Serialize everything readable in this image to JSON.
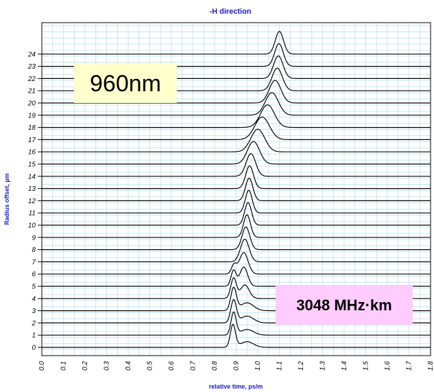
{
  "chart_data": {
    "type": "line",
    "title": "-H direction",
    "xlabel": "relative time, ps/m",
    "ylabel": "Radius offset, µm",
    "xlim": [
      0.0,
      1.8
    ],
    "x_ticks": [
      "0.0",
      "0.1",
      "0.2",
      "0.3",
      "0.4",
      "0.5",
      "0.6",
      "0.7",
      "0.8",
      "0.9",
      "1.0",
      "1.1",
      "1.2",
      "1.3",
      "1.4",
      "1.5",
      "1.6",
      "1.7",
      "1.8"
    ],
    "y_ticks": [
      "0",
      "1",
      "2",
      "3",
      "4",
      "5",
      "6",
      "7",
      "8",
      "9",
      "10",
      "11",
      "12",
      "13",
      "14",
      "15",
      "16",
      "17",
      "18",
      "19",
      "20",
      "21",
      "22",
      "23",
      "24"
    ],
    "grid": true,
    "series": [
      {
        "offset": 0,
        "peaks": [
          {
            "t": 0.885,
            "a": 1.0,
            "w": 0.012
          },
          {
            "t": 0.95,
            "a": 0.25,
            "w": 0.03
          }
        ]
      },
      {
        "offset": 1,
        "peaks": [
          {
            "t": 0.888,
            "a": 1.0,
            "w": 0.012
          },
          {
            "t": 0.95,
            "a": 0.25,
            "w": 0.03
          }
        ]
      },
      {
        "offset": 2,
        "peaks": [
          {
            "t": 0.888,
            "a": 1.0,
            "w": 0.013
          },
          {
            "t": 0.95,
            "a": 0.3,
            "w": 0.03
          }
        ]
      },
      {
        "offset": 3,
        "peaks": [
          {
            "t": 0.888,
            "a": 1.0,
            "w": 0.013
          },
          {
            "t": 0.95,
            "a": 0.35,
            "w": 0.03
          }
        ]
      },
      {
        "offset": 4,
        "peaks": [
          {
            "t": 0.888,
            "a": 0.9,
            "w": 0.013
          },
          {
            "t": 0.94,
            "a": 0.6,
            "w": 0.02
          }
        ]
      },
      {
        "offset": 5,
        "peaks": [
          {
            "t": 0.888,
            "a": 0.7,
            "w": 0.012
          },
          {
            "t": 0.935,
            "a": 0.85,
            "w": 0.018
          }
        ]
      },
      {
        "offset": 6,
        "peaks": [
          {
            "t": 0.89,
            "a": 0.4,
            "w": 0.012
          },
          {
            "t": 0.935,
            "a": 0.95,
            "w": 0.02
          }
        ]
      },
      {
        "offset": 7,
        "peaks": [
          {
            "t": 0.94,
            "a": 1.0,
            "w": 0.02
          }
        ]
      },
      {
        "offset": 8,
        "peaks": [
          {
            "t": 0.945,
            "a": 1.0,
            "w": 0.018
          }
        ]
      },
      {
        "offset": 9,
        "peaks": [
          {
            "t": 0.95,
            "a": 1.0,
            "w": 0.016
          }
        ]
      },
      {
        "offset": 10,
        "peaks": [
          {
            "t": 0.955,
            "a": 1.0,
            "w": 0.016
          }
        ]
      },
      {
        "offset": 11,
        "peaks": [
          {
            "t": 0.958,
            "a": 1.0,
            "w": 0.016
          }
        ]
      },
      {
        "offset": 12,
        "peaks": [
          {
            "t": 0.96,
            "a": 1.0,
            "w": 0.017
          }
        ]
      },
      {
        "offset": 13,
        "peaks": [
          {
            "t": 0.962,
            "a": 1.0,
            "w": 0.018
          }
        ]
      },
      {
        "offset": 14,
        "peaks": [
          {
            "t": 0.968,
            "a": 1.0,
            "w": 0.022
          }
        ]
      },
      {
        "offset": 15,
        "peaks": [
          {
            "t": 0.98,
            "a": 1.0,
            "w": 0.028
          }
        ]
      },
      {
        "offset": 16,
        "peaks": [
          {
            "t": 1.0,
            "a": 1.0,
            "w": 0.032
          }
        ]
      },
      {
        "offset": 17,
        "peaks": [
          {
            "t": 1.02,
            "a": 1.0,
            "w": 0.034
          }
        ]
      },
      {
        "offset": 18,
        "peaks": [
          {
            "t": 1.045,
            "a": 1.0,
            "w": 0.032
          }
        ]
      },
      {
        "offset": 19,
        "peaks": [
          {
            "t": 1.065,
            "a": 1.0,
            "w": 0.03
          }
        ]
      },
      {
        "offset": 20,
        "peaks": [
          {
            "t": 1.08,
            "a": 1.0,
            "w": 0.027
          }
        ]
      },
      {
        "offset": 21,
        "peaks": [
          {
            "t": 1.09,
            "a": 1.0,
            "w": 0.024
          }
        ]
      },
      {
        "offset": 22,
        "peaks": [
          {
            "t": 1.095,
            "a": 1.0,
            "w": 0.022
          }
        ]
      },
      {
        "offset": 23,
        "peaks": [
          {
            "t": 1.098,
            "a": 1.0,
            "w": 0.02
          }
        ]
      },
      {
        "offset": 24,
        "peaks": [
          {
            "t": 1.1,
            "a": 1.0,
            "w": 0.019
          }
        ]
      }
    ],
    "annotations": [
      {
        "text": "960nm",
        "background": "#ffffcc"
      },
      {
        "text": "3048 MHz·km",
        "background": "#ffccff"
      }
    ]
  }
}
